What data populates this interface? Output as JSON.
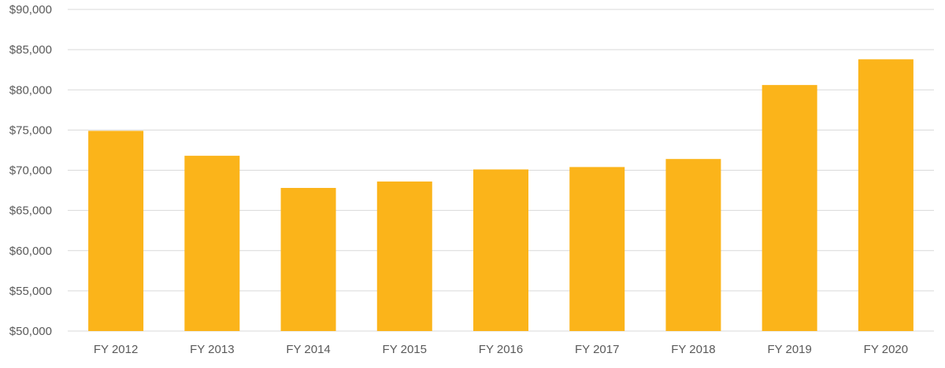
{
  "chart_data": {
    "type": "bar",
    "categories": [
      "FY 2012",
      "FY 2013",
      "FY 2014",
      "FY 2015",
      "FY 2016",
      "FY 2017",
      "FY 2018",
      "FY 2019",
      "FY 2020"
    ],
    "values": [
      74900,
      71800,
      67800,
      68600,
      70100,
      70400,
      71400,
      80600,
      83800
    ],
    "title": "",
    "xlabel": "",
    "ylabel": "",
    "ylim": [
      50000,
      90000
    ],
    "yticks": [
      50000,
      55000,
      60000,
      65000,
      70000,
      75000,
      80000,
      85000,
      90000
    ],
    "ytick_labels": [
      "$50,000",
      "$55,000",
      "$60,000",
      "$65,000",
      "$70,000",
      "$75,000",
      "$80,000",
      "$85,000",
      "$90,000"
    ],
    "grid": true,
    "legend": "none",
    "bar_color": "#FBB41A"
  }
}
